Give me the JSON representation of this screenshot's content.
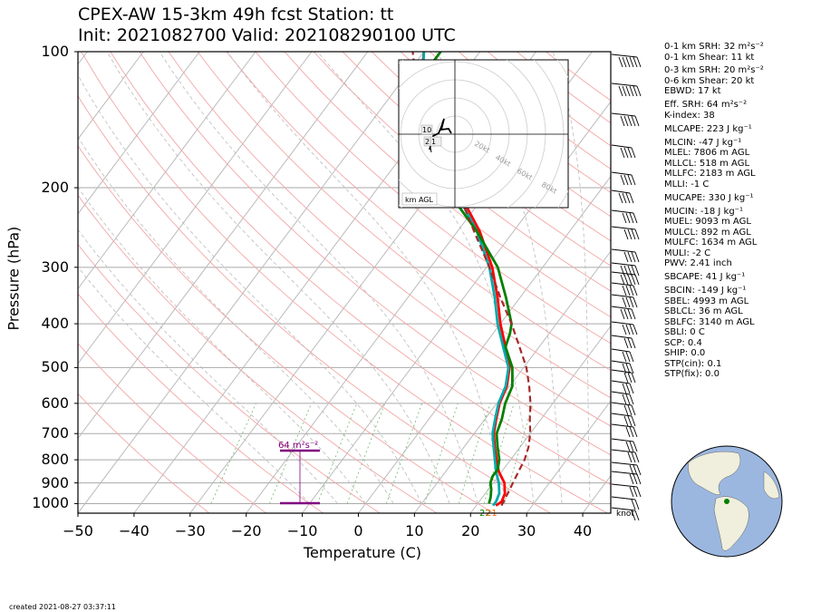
{
  "title_line1": "CPEX-AW 15-3km  49h fcst  Station: tt",
  "title_line2": "Init: 2021082700  Valid: 202108290100 UTC",
  "created": "created 2021-08-27 03:37:11",
  "srh_box_label": "64 m²s⁻²",
  "hodo_label": "km AGL",
  "knot_label": "knot",
  "chart_data": {
    "type": "line",
    "xlabel": "Temperature (C)",
    "ylabel": "Pressure (hPa)",
    "xlim": [
      -50,
      45
    ],
    "ylim": [
      1050,
      100
    ],
    "y_scale": "log",
    "x_ticks": [
      "−50",
      "−40",
      "−30",
      "−20",
      "−10",
      "0",
      "10",
      "20",
      "30",
      "40"
    ],
    "y_ticks": [
      "100",
      "200",
      "300",
      "400",
      "500",
      "600",
      "700",
      "800",
      "900",
      "1000"
    ],
    "series": [
      {
        "color": "#ff0000",
        "p": [
          1010,
          990,
          950,
          900,
          850,
          800,
          750,
          700,
          650,
          600,
          550,
          500,
          450,
          400,
          350,
          300,
          250,
          200,
          150,
          130,
          100
        ],
        "t": [
          23.5,
          24.0,
          23.5,
          22.0,
          19.5,
          17.5,
          15.5,
          13.5,
          12.0,
          10.5,
          9.5,
          7.5,
          4.0,
          0.0,
          -4.0,
          -9.0,
          -16.0,
          -26.0,
          -39.0,
          -44.0,
          -50.0
        ]
      },
      {
        "color": "#00aaaa",
        "p": [
          1010,
          990,
          950,
          900,
          850,
          800,
          750,
          700,
          650,
          600,
          550,
          500,
          450,
          400,
          350,
          300,
          250,
          200,
          150,
          130,
          100
        ],
        "t": [
          23.0,
          23.0,
          22.5,
          21.0,
          19.0,
          17.2,
          15.3,
          13.3,
          11.8,
          10.3,
          9.3,
          7.3,
          3.6,
          -0.5,
          -4.5,
          -9.5,
          -16.5,
          -26.5,
          -39.0,
          -43.5,
          -50.0
        ]
      },
      {
        "color": "#008000",
        "p": [
          1000,
          970,
          930,
          900,
          870,
          840,
          800,
          750,
          700,
          650,
          600,
          550,
          500,
          450,
          420,
          400,
          350,
          300,
          250,
          200,
          160,
          130,
          115,
          100
        ],
        "t": [
          22.0,
          21.5,
          20.5,
          19.5,
          19.0,
          19.0,
          18.0,
          16.0,
          14.0,
          13.0,
          11.5,
          10.5,
          8.0,
          4.0,
          3.0,
          2.0,
          -2.5,
          -8.0,
          -16.5,
          -28.0,
          -40.0,
          -46.0,
          -47.0,
          -47.0
        ]
      },
      {
        "color": "#a52a2a",
        "dash": true,
        "p": [
          1010,
          950,
          900,
          850,
          800,
          750,
          700,
          650,
          600,
          550,
          500,
          450,
          400,
          350,
          300,
          250,
          200,
          150,
          130,
          100
        ],
        "t": [
          24.5,
          24.0,
          23.5,
          23.0,
          22.5,
          21.5,
          20.0,
          18.0,
          16.0,
          13.5,
          10.5,
          6.5,
          2.0,
          -3.5,
          -9.5,
          -17.0,
          -26.0,
          -38.0,
          -44.0,
          -52.0
        ]
      }
    ]
  },
  "indices": [
    "0-1 km SRH: 32 m²s⁻²",
    "0-1 km Shear: 11 kt",
    "0-3 km SRH: 20 m²s⁻²",
    "0-6 km Shear: 20 kt",
    "EBWD: 17 kt",
    "Eff. SRH: 64 m²s⁻²",
    "K-index: 38",
    "MLCAPE: 223 J kg⁻¹",
    "MLCIN: -47 J kg⁻¹",
    "MLEL: 7806 m AGL",
    "MLLCL: 518 m AGL",
    "MLLFC: 2183 m AGL",
    "MLLI: -1 C",
    "MUCAPE: 330 J kg⁻¹",
    "MUCIN: -18 J kg⁻¹",
    "MUEL: 9093 m AGL",
    "MULCL: 892 m AGL",
    "MULFC: 1634 m AGL",
    "MULI: -2 C",
    "PWV: 2.41 inch",
    "SBCAPE: 41 J kg⁻¹",
    "SBCIN: -149 J kg⁻¹",
    "SBEL: 4993 m AGL",
    "SBLCL: 36 m AGL",
    "SBLFC: 3140 m AGL",
    "SBLI: 0 C",
    "SCP: 0.4",
    "SHIP: 0.0",
    "STP(cin): 0.1",
    "STP(fix): 0.0"
  ],
  "hodo_rings": [
    "20kt",
    "40kt",
    "60kt",
    "80kt"
  ],
  "hodo_markers": [
    "10",
    "2",
    "1"
  ],
  "surface_markers": [
    "22",
    "21"
  ]
}
